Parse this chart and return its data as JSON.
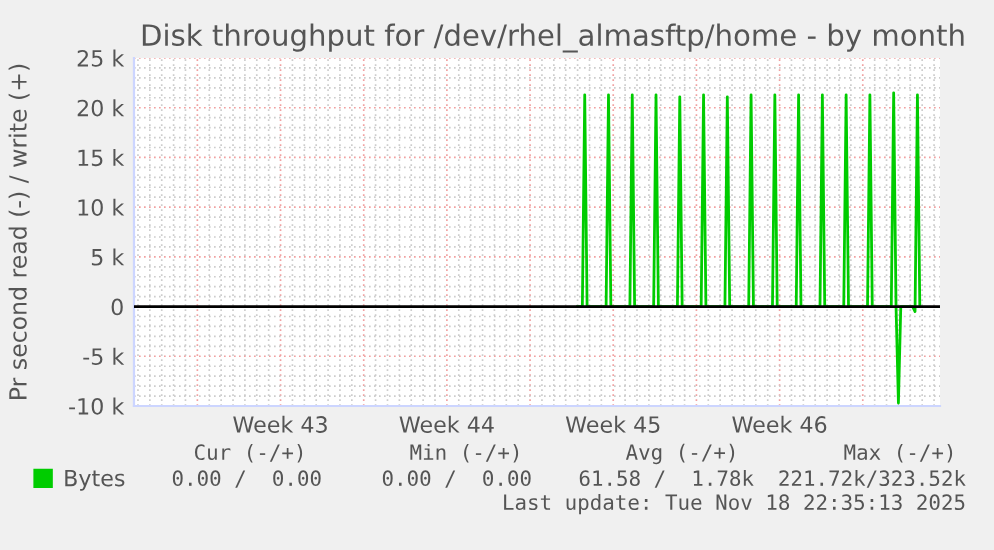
{
  "chart_data": {
    "type": "line",
    "title": "Disk throughput for /dev/rhel_almasftp/home - by month",
    "ylabel": "Pr second read (-) / write (+)",
    "series": [
      {
        "name": "Bytes",
        "color": "#00cc00",
        "x": [
          "2025-11-04T00:00",
          "2025-11-04T04:48",
          "2025-11-04T07:12",
          "2025-11-04T09:36",
          "2025-11-05T04:48",
          "2025-11-05T07:12",
          "2025-11-05T09:36",
          "2025-11-06T04:48",
          "2025-11-06T07:12",
          "2025-11-06T09:36",
          "2025-11-07T04:48",
          "2025-11-07T07:12",
          "2025-11-07T09:36",
          "2025-11-08T04:48",
          "2025-11-08T07:12",
          "2025-11-08T09:36",
          "2025-11-09T04:48",
          "2025-11-09T07:12",
          "2025-11-09T09:36",
          "2025-11-10T04:48",
          "2025-11-10T07:12",
          "2025-11-10T09:36",
          "2025-11-11T04:48",
          "2025-11-11T07:12",
          "2025-11-11T09:36",
          "2025-11-12T04:48",
          "2025-11-12T07:12",
          "2025-11-12T09:36",
          "2025-11-13T04:48",
          "2025-11-13T07:12",
          "2025-11-13T09:36",
          "2025-11-14T04:48",
          "2025-11-14T07:12",
          "2025-11-14T09:36",
          "2025-11-15T04:48",
          "2025-11-15T07:12",
          "2025-11-15T09:36",
          "2025-11-16T04:48",
          "2025-11-16T07:12",
          "2025-11-16T09:36",
          "2025-11-17T04:48",
          "2025-11-17T07:12",
          "2025-11-17T09:36",
          "2025-11-17T12:00",
          "2025-11-17T14:24",
          "2025-11-18T02:24",
          "2025-11-18T04:48",
          "2025-11-18T07:12",
          "2025-11-18T09:36"
        ],
        "values": [
          0,
          0,
          21300,
          0,
          0,
          21300,
          0,
          0,
          21300,
          0,
          0,
          21300,
          0,
          0,
          21100,
          0,
          0,
          21300,
          0,
          0,
          21100,
          0,
          0,
          21300,
          0,
          0,
          21300,
          0,
          0,
          21300,
          0,
          0,
          21300,
          0,
          0,
          21300,
          0,
          0,
          21300,
          0,
          0,
          21500,
          0,
          -9700,
          0,
          0,
          -500,
          21300,
          0
        ]
      }
    ],
    "xlim": [
      "2025-10-16T08:00",
      "2025-11-19T06:00"
    ],
    "xticks": [
      {
        "value": "2025-10-19",
        "label": null
      },
      {
        "value": "2025-10-22T12:00",
        "label": "Week 43"
      },
      {
        "value": "2025-10-26",
        "label": null
      },
      {
        "value": "2025-10-29T12:00",
        "label": "Week 44"
      },
      {
        "value": "2025-11-02",
        "label": null
      },
      {
        "value": "2025-11-05T12:00",
        "label": "Week 45"
      },
      {
        "value": "2025-11-09",
        "label": null
      },
      {
        "value": "2025-11-12T12:00",
        "label": "Week 46"
      },
      {
        "value": "2025-11-16",
        "label": null
      }
    ],
    "ylim": [
      -10000,
      25000
    ],
    "yticks": [
      {
        "value": -10000,
        "label": "-10 k"
      },
      {
        "value": -5000,
        "label": "-5 k"
      },
      0,
      {
        "value": 5000,
        "label": "5 k"
      },
      {
        "value": 10000,
        "label": "10 k"
      },
      {
        "value": 15000,
        "label": "15 k"
      },
      {
        "value": 20000,
        "label": "20 k"
      },
      {
        "value": 25000,
        "label": "25 k"
      }
    ],
    "ref_lines": [
      {
        "axis": "y",
        "value": 0,
        "color": "#000000"
      }
    ],
    "grid": true,
    "legend": "bottom left",
    "line_style": "solid",
    "marker": "none",
    "annotations": [
      "Cur (-/+)",
      "Min (-/+)",
      "Avg (-/+)",
      "Max (-/+)",
      "0.00 /  0.00",
      "0.00 /  0.00",
      "61.58 /  1.78k",
      "221.72k/323.52k",
      "Last update: Tue Nov 18 22:35:13 2025"
    ]
  }
}
